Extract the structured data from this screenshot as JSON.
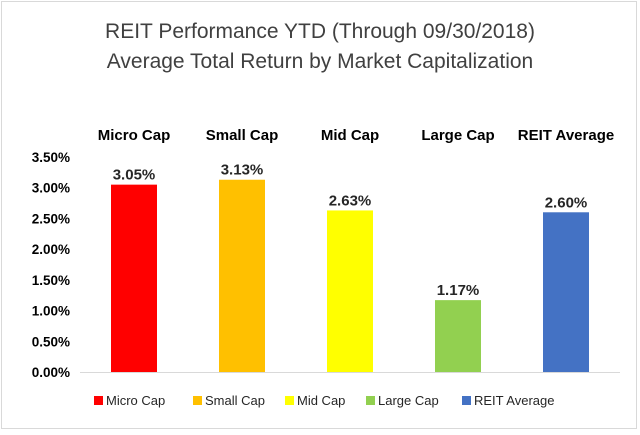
{
  "chart_data": {
    "type": "bar",
    "title": "REIT Performance YTD (Through 09/30/2018)",
    "subtitle": "Average Total Return by Market Capitalization",
    "categories": [
      "Micro Cap",
      "Small Cap",
      "Mid Cap",
      "Large Cap",
      "REIT Average"
    ],
    "values": [
      3.05,
      3.13,
      2.63,
      1.17,
      2.6
    ],
    "data_labels": [
      "3.05%",
      "3.13%",
      "2.63%",
      "1.17%",
      "2.60%"
    ],
    "colors": [
      "#ff0000",
      "#ffc000",
      "#ffff00",
      "#92d050",
      "#4472c4"
    ],
    "ylim": [
      0,
      3.5
    ],
    "yticks": [
      0,
      0.5,
      1.0,
      1.5,
      2.0,
      2.5,
      3.0,
      3.5
    ],
    "ytick_labels": [
      "0.00%",
      "0.50%",
      "1.00%",
      "1.50%",
      "2.00%",
      "2.50%",
      "3.00%",
      "3.50%"
    ],
    "xlabel": "",
    "ylabel": "",
    "category_labels_position": "top",
    "grid": false,
    "legend": {
      "position": "bottom",
      "entries": [
        "Micro Cap",
        "Small Cap",
        "Mid Cap",
        "Large Cap",
        "REIT Average"
      ]
    }
  }
}
